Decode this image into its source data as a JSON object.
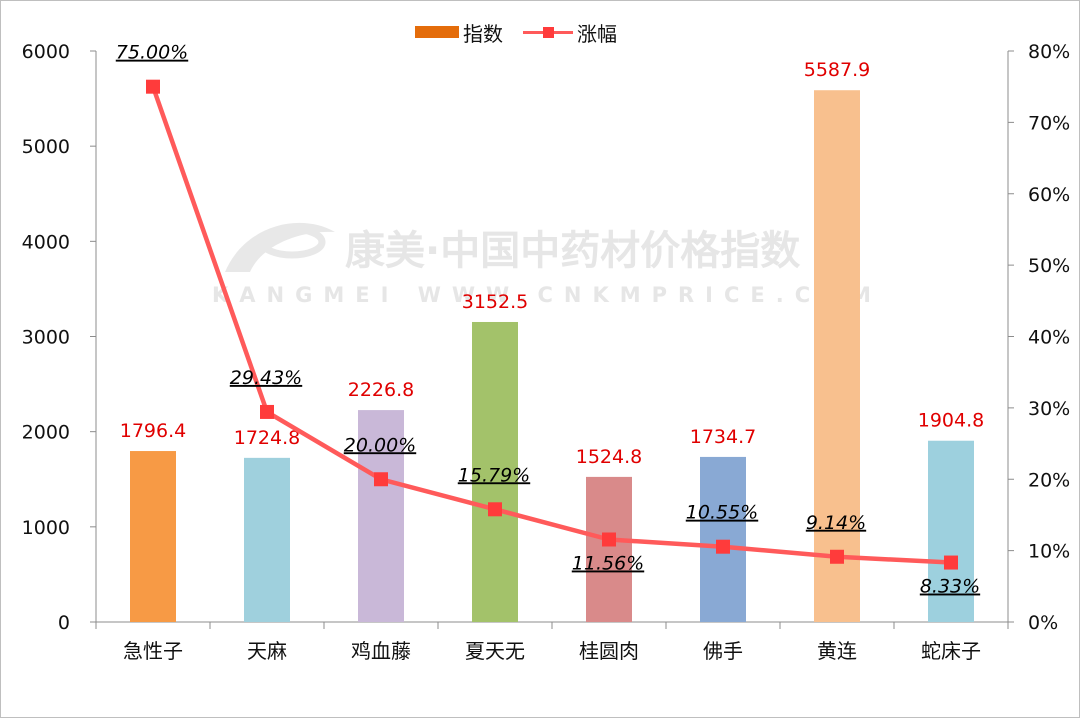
{
  "legend": {
    "bar_label": "指数",
    "line_label": "涨幅"
  },
  "colors": {
    "legend_bar": "#e46c0a",
    "line": "#ff5a5a",
    "marker": "#ff3b3b",
    "value_label": "#e00000",
    "pct_label": "#000000",
    "bars": [
      "#f79a45",
      "#9fd0dd",
      "#c9b8d8",
      "#a3c26a",
      "#d98a8a",
      "#89a9d4",
      "#f8c08e",
      "#9dd0de"
    ]
  },
  "watermark": {
    "line1": "康美·中国中药材价格指数",
    "line2": "KANGMEI WWW.CNKMPRICE.COM"
  },
  "chart_data": {
    "type": "bar",
    "categories": [
      "急性子",
      "天麻",
      "鸡血藤",
      "夏天无",
      "桂圆肉",
      "佛手",
      "黄连",
      "蛇床子"
    ],
    "series": [
      {
        "name": "指数",
        "type": "bar",
        "axis": "left",
        "values": [
          1796.4,
          1724.8,
          2226.8,
          3152.5,
          1524.8,
          1734.7,
          5587.9,
          1904.8
        ],
        "labels": [
          "1796.4",
          "1724.8",
          "2226.8",
          "3152.5",
          "1524.8",
          "1734.7",
          "5587.9",
          "1904.8"
        ]
      },
      {
        "name": "涨幅",
        "type": "line",
        "axis": "right",
        "values": [
          75.0,
          29.43,
          20.0,
          15.79,
          11.56,
          10.55,
          9.14,
          8.33
        ],
        "labels": [
          "75.00%",
          "29.43%",
          "20.00%",
          "15.79%",
          "11.56%",
          "10.55%",
          "9.14%",
          "8.33%"
        ]
      }
    ],
    "y_left": {
      "min": 0,
      "max": 6000,
      "ticks": [
        "0",
        "1000",
        "2000",
        "3000",
        "4000",
        "5000",
        "6000"
      ]
    },
    "y_right": {
      "min": 0,
      "max": 80,
      "ticks": [
        "0%",
        "10%",
        "20%",
        "30%",
        "40%",
        "50%",
        "60%",
        "70%",
        "80%"
      ]
    },
    "grid": false,
    "legend_position": "top-center"
  }
}
